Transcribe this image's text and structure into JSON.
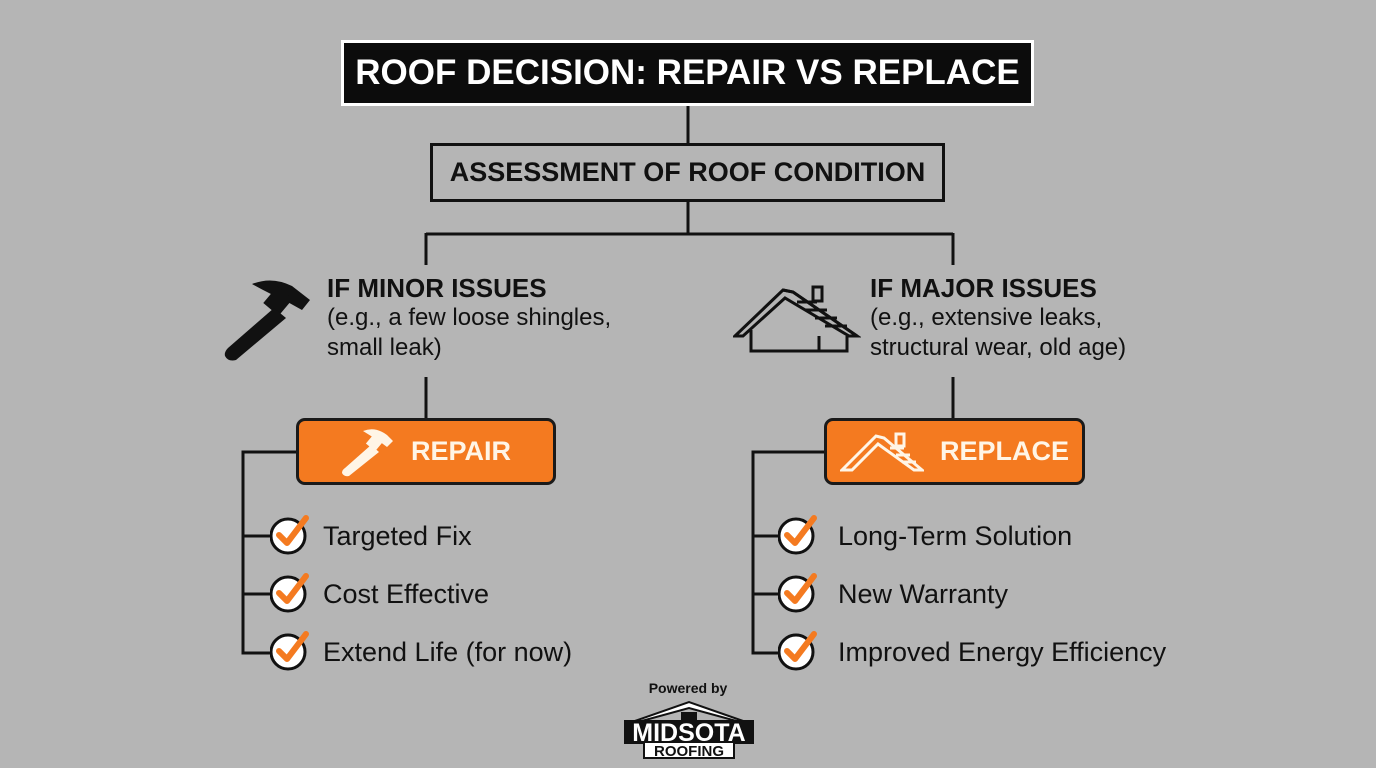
{
  "title": "ROOF DECISION: REPAIR VS REPLACE",
  "assessment": "ASSESSMENT OF ROOF CONDITION",
  "left": {
    "icon": "hammer-icon",
    "condition_title": "IF MINOR ISSUES",
    "condition_lines": [
      "(e.g., a few loose shingles,",
      "small leak)"
    ],
    "action_icon": "hammer-icon",
    "action": "REPAIR",
    "benefits": [
      "Targeted Fix",
      "Cost Effective",
      "Extend Life (for now)"
    ]
  },
  "right": {
    "icon": "house-icon",
    "condition_title": "IF MAJOR ISSUES",
    "condition_lines": [
      "(e.g., extensive leaks,",
      "structural wear, old age)"
    ],
    "action_icon": "roof-icon",
    "action": "REPLACE",
    "benefits": [
      "Long-Term Solution",
      "New Warranty",
      "Improved Energy Efficiency"
    ]
  },
  "footer": {
    "powered_by": "Powered by",
    "logo_line1": "MIDSOTA",
    "logo_line2": "ROOFING"
  },
  "colors": {
    "background": "#b5b5b5",
    "accent": "#f47a20",
    "title_bg": "#0c0c0c"
  }
}
